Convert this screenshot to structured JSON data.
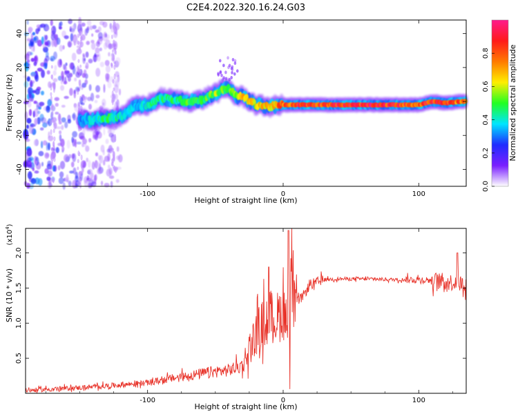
{
  "title": "C2E4.2022.320.16.24.G03",
  "chart_data": [
    {
      "type": "heatmap",
      "xlabel": "Height of straight line (km)",
      "ylabel": "Frequency (Hz)",
      "xlim": [
        -190,
        135
      ],
      "ylim": [
        -50,
        48
      ],
      "xticks": [
        -100,
        0,
        100
      ],
      "yticks": [
        -40,
        -20,
        0,
        20,
        40
      ],
      "colorbar": {
        "label": "Normalized spectral amplitude",
        "range": [
          0,
          1
        ],
        "ticks": [
          "0.0",
          "0.2",
          "0.4",
          "0.6",
          "0.8"
        ],
        "colors": [
          "#ffffff",
          "#7a1fff",
          "#1f2cff",
          "#00e5ff",
          "#22ff22",
          "#ffee00",
          "#ff7a00",
          "#ff1a1a",
          "#ff1a8c"
        ]
      },
      "ridge": {
        "x": [
          -150,
          -140,
          -130,
          -120,
          -110,
          -100,
          -90,
          -80,
          -70,
          -60,
          -50,
          -40,
          -35,
          -30,
          -20,
          -10,
          0,
          10,
          20,
          40,
          60,
          80,
          100,
          110,
          120,
          130,
          135
        ],
        "frequency": [
          -11,
          -11,
          -10,
          -9,
          -3,
          -2,
          2,
          1,
          0,
          1,
          5,
          8,
          3,
          3,
          -2,
          -3,
          -2,
          -2,
          -2,
          -2,
          -2,
          -2,
          -2,
          0,
          -1,
          0,
          0
        ],
        "amplitude": [
          0.35,
          0.45,
          0.5,
          0.45,
          0.4,
          0.45,
          0.5,
          0.5,
          0.55,
          0.5,
          0.6,
          0.55,
          0.65,
          0.7,
          0.7,
          0.75,
          0.85,
          0.95,
          0.95,
          0.95,
          0.95,
          0.95,
          0.9,
          0.95,
          0.9,
          0.85,
          0.8
        ]
      },
      "noise_region": {
        "x": [
          -190,
          -120
        ],
        "frequency": [
          -50,
          48
        ]
      }
    },
    {
      "type": "line",
      "xlabel": "Height of straight line (km)",
      "ylabel": "SNR (10 * v/v)",
      "yscale_label": "(x10^4)",
      "xlim": [
        -190,
        135
      ],
      "ylim": [
        0,
        23500
      ],
      "xticks": [
        -100,
        0,
        100
      ],
      "yticks": [
        5000,
        10000,
        15000,
        20000
      ],
      "ytick_labels": [
        "0.5",
        "1.0",
        "1.5",
        "2.0"
      ],
      "color": "#e8332a",
      "series": [
        {
          "x": [
            -190,
            -160,
            -140,
            -120,
            -100,
            -80,
            -60,
            -50,
            -40,
            -30,
            -25,
            -20,
            -15,
            -10,
            -5,
            0,
            3,
            5,
            6,
            8,
            10,
            15,
            20,
            25,
            30,
            40,
            60,
            80,
            100,
            110,
            120,
            130,
            135
          ],
          "y": [
            400,
            700,
            900,
            1200,
            1500,
            2200,
            2800,
            3100,
            3300,
            4000,
            6500,
            8500,
            10000,
            11000,
            10500,
            12000,
            9500,
            10000,
            18000,
            12000,
            13000,
            14000,
            15500,
            15800,
            16200,
            16300,
            16300,
            16200,
            16200,
            16100,
            15900,
            15700,
            15500
          ]
        }
      ]
    }
  ]
}
